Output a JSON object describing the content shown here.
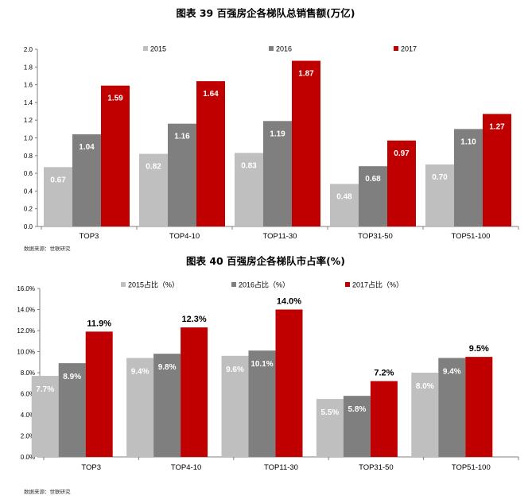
{
  "colors": {
    "s2015": "#bfbfbf",
    "s2016": "#7f7f7f",
    "s2017": "#c00000",
    "axis": "#7f7f7f"
  },
  "chart_data": [
    {
      "type": "bar",
      "title": "图表  39  百强房企各梯队总销售额(万亿)",
      "categories": [
        "TOP3",
        "TOP4-10",
        "TOP11-30",
        "TOP31-50",
        "TOP51-100"
      ],
      "series": [
        {
          "name": "2015",
          "values": [
            0.67,
            0.82,
            0.83,
            0.48,
            0.7
          ],
          "labels": [
            "0.67",
            "0.82",
            "0.83",
            "0.48",
            "0.70"
          ]
        },
        {
          "name": "2016",
          "values": [
            1.04,
            1.16,
            1.19,
            0.68,
            1.1
          ],
          "labels": [
            "1.04",
            "1.16",
            "1.19",
            "0.68",
            "1.10"
          ]
        },
        {
          "name": "2017",
          "values": [
            1.59,
            1.64,
            1.87,
            0.97,
            1.27
          ],
          "labels": [
            "1.59",
            "1.64",
            "1.87",
            "0.97",
            "1.27"
          ]
        }
      ],
      "ylim": [
        0,
        2.0
      ],
      "yticks": [
        "0.0",
        "0.2",
        "0.4",
        "0.6",
        "0.8",
        "1.0",
        "1.2",
        "1.4",
        "1.6",
        "1.8",
        "2.0"
      ],
      "xlabel": "",
      "ylabel": "",
      "legend": "top",
      "source": "数据来源：世联研究"
    },
    {
      "type": "bar",
      "title": "图表  40  百强房企各梯队市占率(%)",
      "categories": [
        "TOP3",
        "TOP4-10",
        "TOP11-30",
        "TOP31-50",
        "TOP51-100"
      ],
      "series": [
        {
          "name": "2015占比（%）",
          "values": [
            7.7,
            9.4,
            9.6,
            5.5,
            8.0
          ],
          "labels": [
            "7.7%",
            "9.4%",
            "9.6%",
            "5.5%",
            "8.0%"
          ]
        },
        {
          "name": "2016占比（%）",
          "values": [
            8.9,
            9.8,
            10.1,
            5.8,
            9.4
          ],
          "labels": [
            "8.9%",
            "9.8%",
            "10.1%",
            "5.8%",
            "9.4%"
          ]
        },
        {
          "name": "2017占比（%）",
          "values": [
            11.9,
            12.3,
            14.0,
            7.2,
            9.5
          ],
          "labels": [
            "11.9%",
            "12.3%",
            "14.0%",
            "7.2%",
            "9.5%"
          ]
        }
      ],
      "ylim": [
        0,
        16.0
      ],
      "yticks": [
        "0.0%",
        "2.0%",
        "4.0%",
        "6.0%",
        "8.0%",
        "10.0%",
        "12.0%",
        "14.0%",
        "16.0%"
      ],
      "xlabel": "",
      "ylabel": "",
      "legend": "top",
      "source": "数据来源：世联研究"
    }
  ]
}
